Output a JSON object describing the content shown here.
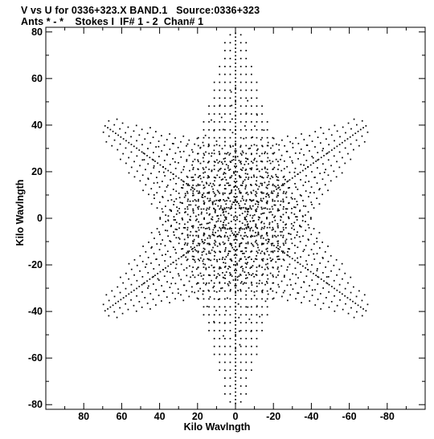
{
  "header": {
    "title_line1": "V vs U for 0336+323.X BAND.1   Source:0336+323",
    "title_line2": "Ants * - *    Stokes I  IF# 1 - 2  Chan# 1"
  },
  "chart_data": {
    "type": "scatter",
    "title": "V vs U for 0336+323.X BAND.1   Source:0336+323",
    "subtitle": "Ants * - *    Stokes I  IF# 1 - 2  Chan# 1",
    "xlabel": "Kilo Wavlngth",
    "ylabel": "Kilo Wavlngth",
    "xlim": [
      100,
      -100
    ],
    "ylim": [
      -82,
      82
    ],
    "x_ticks": [
      80,
      60,
      40,
      20,
      0,
      -20,
      -40,
      -60,
      -80
    ],
    "y_ticks": [
      80,
      60,
      40,
      20,
      0,
      -20,
      -40,
      -60,
      -80
    ],
    "grid": false,
    "series": [
      {
        "values_description": "uv-coverage points forming a six-armed star (VLA Y configuration); each arm tick track has mirrored (-u,-v) counterpart",
        "arm_angles_deg": [
          90,
          30,
          150,
          210,
          270,
          330
        ],
        "arm_max_radius": 80,
        "x": [],
        "y": []
      }
    ],
    "marker_color": "#000000"
  }
}
